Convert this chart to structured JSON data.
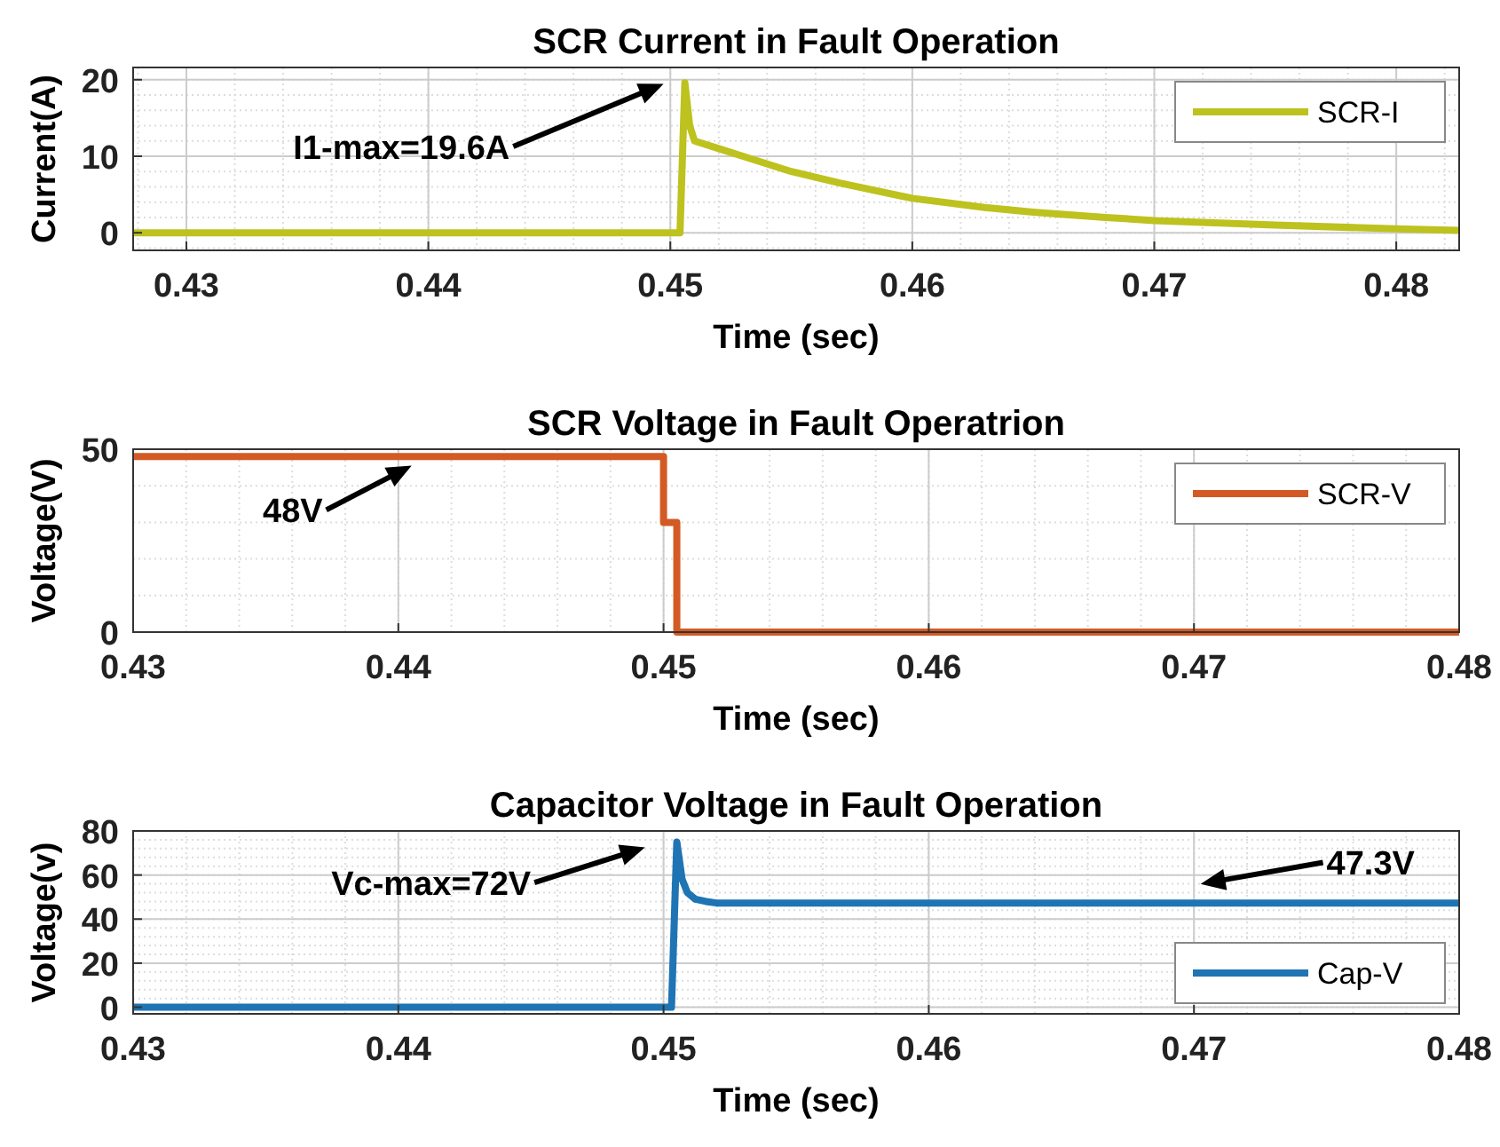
{
  "chart_data": [
    {
      "type": "line",
      "title": "SCR Current in Fault Operation",
      "xlabel": "Time (sec)",
      "ylabel": "Current(A)",
      "xlim": [
        0.4278,
        0.4826
      ],
      "ylim": [
        -2.3,
        21.6
      ],
      "xticks": [
        0.43,
        0.44,
        0.45,
        0.46,
        0.47,
        0.48
      ],
      "yticks": [
        0,
        10,
        20
      ],
      "grid": true,
      "legend": "top right",
      "series": [
        {
          "name": "SCR-I",
          "color": "#bdc21e",
          "x": [
            0.4278,
            0.4504,
            0.4506,
            0.4508,
            0.451,
            0.452,
            0.453,
            0.455,
            0.457,
            0.46,
            0.463,
            0.465,
            0.468,
            0.47,
            0.475,
            0.48,
            0.4826
          ],
          "values": [
            0,
            0,
            19.6,
            14,
            12,
            11,
            10,
            8,
            6.5,
            4.5,
            3.3,
            2.7,
            2,
            1.6,
            1,
            0.5,
            0.3
          ]
        }
      ],
      "annotations": [
        "I1-max=19.6A"
      ]
    },
    {
      "type": "line",
      "title": "SCR Voltage in Fault Operatrion",
      "xlabel": "Time (sec)",
      "ylabel": "Voltage(V)",
      "xlim": [
        0.43,
        0.48
      ],
      "ylim": [
        0,
        50
      ],
      "xticks": [
        0.43,
        0.44,
        0.45,
        0.46,
        0.47,
        0.48
      ],
      "yticks": [
        0,
        50
      ],
      "grid": true,
      "legend": "top right",
      "series": [
        {
          "name": "SCR-V",
          "color": "#d35a24",
          "x": [
            0.43,
            0.45,
            0.45,
            0.4505,
            0.4505,
            0.48
          ],
          "values": [
            48,
            48,
            30,
            30,
            0,
            0
          ]
        }
      ],
      "annotations": [
        "48V"
      ]
    },
    {
      "type": "line",
      "title": "Capacitor Voltage in Fault Operation",
      "xlabel": "Time (sec)",
      "ylabel": "Voltage(v)",
      "xlim": [
        0.43,
        0.48
      ],
      "ylim": [
        -3,
        80
      ],
      "xticks": [
        0.43,
        0.44,
        0.45,
        0.46,
        0.47,
        0.48
      ],
      "yticks": [
        0,
        20,
        40,
        60,
        80
      ],
      "grid": true,
      "legend": "bottom right",
      "series": [
        {
          "name": "Cap-V",
          "color": "#1f74b4",
          "x": [
            0.43,
            0.4503,
            0.4505,
            0.4507,
            0.4509,
            0.4512,
            0.4516,
            0.452,
            0.48
          ],
          "values": [
            0,
            0,
            75,
            58,
            52,
            49,
            48,
            47.3,
            47.3
          ]
        }
      ],
      "annotations": [
        "Vc-max=72V",
        "47.3V"
      ]
    }
  ]
}
